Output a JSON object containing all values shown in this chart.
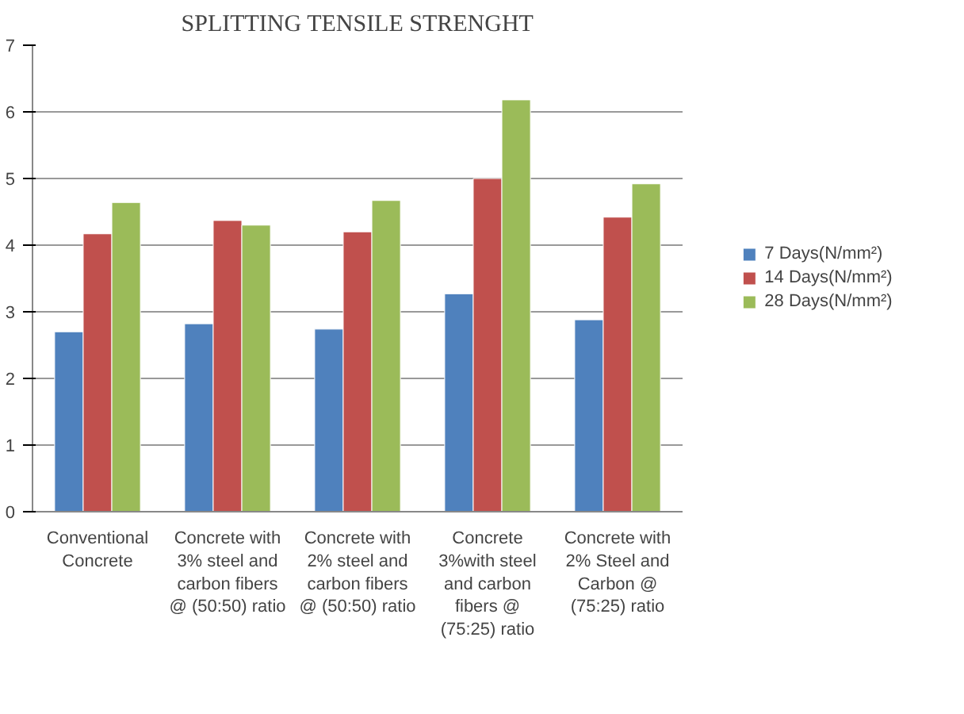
{
  "chart_data": {
    "type": "bar",
    "title": "SPLITTING TENSILE STRENGHT",
    "categories": [
      "Conventional\nConcrete",
      "Concrete with\n3% steel and\ncarbon fibers\n@ (50:50) ratio",
      "Concrete with\n2% steel and\ncarbon fibers\n@ (50:50) ratio",
      "Concrete\n3%with steel\nand carbon\nfibers @\n(75:25) ratio",
      "Concrete with\n2% Steel and\nCarbon @\n(75:25) ratio"
    ],
    "series": [
      {
        "name": "7 Days(N/mm²)",
        "color": "#4f81bd",
        "values": [
          2.7,
          2.82,
          2.74,
          3.27,
          2.88
        ]
      },
      {
        "name": "14 Days(N/mm²)",
        "color": "#c0504d",
        "values": [
          4.17,
          4.37,
          4.2,
          5.0,
          4.42
        ]
      },
      {
        "name": "28 Days(N/mm²)",
        "color": "#9bbb59",
        "values": [
          4.64,
          4.3,
          4.67,
          6.18,
          4.92
        ]
      }
    ],
    "ylim": [
      0,
      7
    ],
    "yticks": [
      0,
      1,
      2,
      3,
      4,
      5,
      6,
      7
    ],
    "grid": "y",
    "legend": "right"
  }
}
